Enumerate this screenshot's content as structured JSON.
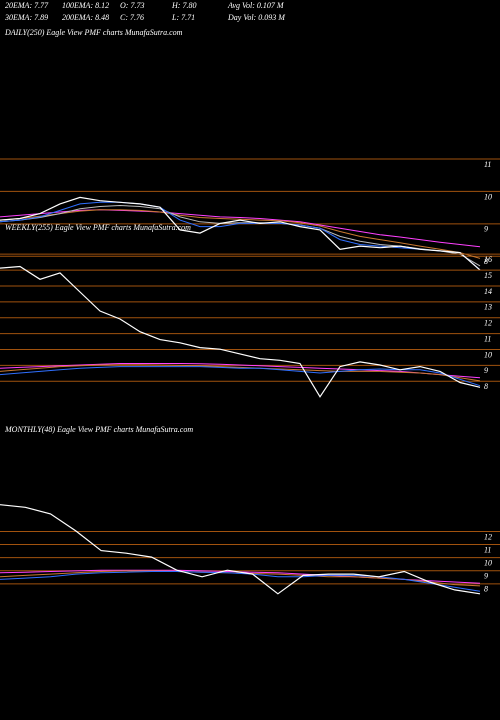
{
  "header": {
    "lines": [
      [
        "20EMA: 7.77",
        "100EMA: 8.12",
        "O: 7.73",
        "H: 7.80",
        "Avg Vol: 0.107 M"
      ],
      [
        "30EMA: 7.89",
        "200EMA: 8.48",
        "C: 7.76",
        "L: 7.71",
        "Day Vol: 0.093 M"
      ]
    ]
  },
  "chart_data": [
    {
      "type": "line",
      "title": "DAILY(250) Eagle  View  PMF charts MunafaSutra.com",
      "ylim": [
        7.3,
        14.7
      ],
      "yticks": [
        11,
        10,
        9,
        8
      ],
      "grid": true,
      "series": [
        {
          "color": "#ff40ff",
          "values": [
            9.4,
            9.45,
            9.5,
            9.55,
            9.6,
            9.62,
            9.6,
            9.58,
            9.55,
            9.5,
            9.45,
            9.4,
            9.38,
            9.35,
            9.3,
            9.25,
            9.15,
            9.05,
            8.95,
            8.85,
            8.78,
            8.7,
            8.62,
            8.55,
            8.48
          ]
        },
        {
          "color": "#c87830",
          "values": [
            9.3,
            9.35,
            9.42,
            9.5,
            9.58,
            9.62,
            9.62,
            9.6,
            9.55,
            9.45,
            9.38,
            9.35,
            9.33,
            9.3,
            9.28,
            9.22,
            9.12,
            8.95,
            8.8,
            8.7,
            8.6,
            8.5,
            8.4,
            8.3,
            8.12
          ]
        },
        {
          "color": "#bbbbbb",
          "values": [
            9.25,
            9.3,
            9.38,
            9.5,
            9.65,
            9.72,
            9.75,
            9.72,
            9.65,
            9.4,
            9.25,
            9.2,
            9.22,
            9.22,
            9.2,
            9.15,
            9.05,
            8.8,
            8.65,
            8.55,
            8.5,
            8.42,
            8.35,
            8.25,
            7.89
          ]
        },
        {
          "color": "#2f6fff",
          "values": [
            9.25,
            9.3,
            9.4,
            9.6,
            9.8,
            9.85,
            9.85,
            9.8,
            9.7,
            9.3,
            9.1,
            9.1,
            9.2,
            9.2,
            9.2,
            9.15,
            9.05,
            8.7,
            8.55,
            8.5,
            8.45,
            8.4,
            8.35,
            8.3,
            7.77
          ]
        },
        {
          "color": "#ffffff",
          "values": [
            9.3,
            9.35,
            9.5,
            9.8,
            10.0,
            9.9,
            9.85,
            9.8,
            9.7,
            9.0,
            8.9,
            9.2,
            9.3,
            9.2,
            9.25,
            9.1,
            9.0,
            8.4,
            8.5,
            8.45,
            8.5,
            8.4,
            8.35,
            8.3,
            7.76
          ]
        }
      ]
    },
    {
      "type": "line",
      "title": "WEEKLY(255) Eagle  View  PMF charts MunafaSutra.com",
      "ylim": [
        7.2,
        17.9
      ],
      "yticks": [
        16,
        15,
        14,
        13,
        12,
        11,
        10,
        9,
        8
      ],
      "grid": true,
      "series": [
        {
          "color": "#ff40ff",
          "values": [
            9.2,
            9.25,
            9.3,
            9.35,
            9.4,
            9.45,
            9.5,
            9.5,
            9.5,
            9.5,
            9.48,
            9.45,
            9.4,
            9.35,
            9.3,
            9.25,
            9.2,
            9.15,
            9.1,
            9.05,
            9.0,
            8.9,
            8.8,
            8.7,
            8.6
          ]
        },
        {
          "color": "#c87830",
          "values": [
            9.0,
            9.1,
            9.2,
            9.3,
            9.35,
            9.4,
            9.42,
            9.42,
            9.4,
            9.38,
            9.35,
            9.3,
            9.25,
            9.2,
            9.15,
            9.1,
            9.05,
            9.0,
            9.0,
            9.0,
            8.95,
            8.9,
            8.8,
            8.6,
            8.4
          ]
        },
        {
          "color": "#2f6fff",
          "values": [
            8.8,
            8.9,
            9.0,
            9.1,
            9.2,
            9.25,
            9.3,
            9.3,
            9.3,
            9.3,
            9.3,
            9.25,
            9.2,
            9.2,
            9.1,
            9.0,
            8.9,
            9.0,
            9.1,
            9.15,
            9.1,
            9.1,
            8.9,
            8.5,
            8.1
          ]
        },
        {
          "color": "#ffffff",
          "values": [
            15.5,
            15.6,
            14.8,
            15.2,
            14.0,
            12.8,
            12.3,
            11.5,
            11.0,
            10.8,
            10.5,
            10.4,
            10.1,
            9.8,
            9.7,
            9.5,
            7.4,
            9.3,
            9.6,
            9.4,
            9.1,
            9.3,
            9.0,
            8.3,
            8.0
          ]
        }
      ]
    },
    {
      "type": "line",
      "title": "MONTHLY(48) Eagle  View  PMF charts MunafaSutra.com",
      "ylim": [
        5.7,
        20.2
      ],
      "yticks": [
        12,
        11,
        10,
        9,
        8
      ],
      "grid": true,
      "series": [
        {
          "color": "#ff40ff",
          "values": [
            9.3,
            9.35,
            9.4,
            9.45,
            9.5,
            9.5,
            9.5,
            9.5,
            9.45,
            9.4,
            9.35,
            9.3,
            9.2,
            9.1,
            9.0,
            8.9,
            8.8,
            8.7,
            8.6,
            8.5
          ]
        },
        {
          "color": "#c87830",
          "values": [
            9.0,
            9.1,
            9.2,
            9.3,
            9.4,
            9.45,
            9.45,
            9.4,
            9.35,
            9.3,
            9.25,
            9.2,
            9.1,
            9.0,
            9.0,
            8.9,
            8.8,
            8.6,
            8.4,
            8.3
          ]
        },
        {
          "color": "#2f6fff",
          "values": [
            8.8,
            8.9,
            9.0,
            9.2,
            9.3,
            9.35,
            9.4,
            9.4,
            9.35,
            9.3,
            9.2,
            9.0,
            9.0,
            9.1,
            9.1,
            9.0,
            8.8,
            8.5,
            8.2,
            7.9
          ]
        },
        {
          "color": "#ffffff",
          "values": [
            14.5,
            14.3,
            13.8,
            12.5,
            11.0,
            10.8,
            10.5,
            9.5,
            9.0,
            9.5,
            9.2,
            7.7,
            9.1,
            9.2,
            9.2,
            9.0,
            9.4,
            8.6,
            8.0,
            7.7
          ]
        }
      ]
    }
  ]
}
